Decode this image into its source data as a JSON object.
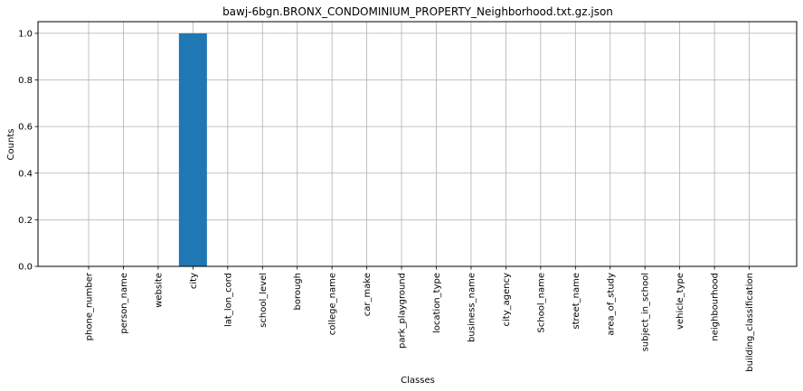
{
  "chart_data": {
    "type": "bar",
    "title": "bawj-6bgn.BRONX_CONDOMINIUM_PROPERTY_Neighborhood.txt.gz.json",
    "xlabel": "Classes",
    "ylabel": "Counts",
    "categories": [
      "phone_number",
      "person_name",
      "website",
      "city",
      "lat_lon_cord",
      "school_level",
      "borough",
      "college_name",
      "car_make",
      "park_playground",
      "location_type",
      "business_name",
      "city_agency",
      "School_name",
      "street_name",
      "area_of_study",
      "subject_in_school",
      "vehicle_type",
      "neighbourhood",
      "building_classification"
    ],
    "values": [
      0,
      0,
      0,
      1,
      0,
      0,
      0,
      0,
      0,
      0,
      0,
      0,
      0,
      0,
      0,
      0,
      0,
      0,
      0,
      0
    ],
    "ylim": [
      0,
      1.05
    ],
    "yticks": [
      "0.0",
      "0.2",
      "0.4",
      "0.6",
      "0.8",
      "1.0"
    ],
    "grid": true,
    "bar_color": "#1f77b4",
    "grid_color": "#b0b0b0"
  }
}
